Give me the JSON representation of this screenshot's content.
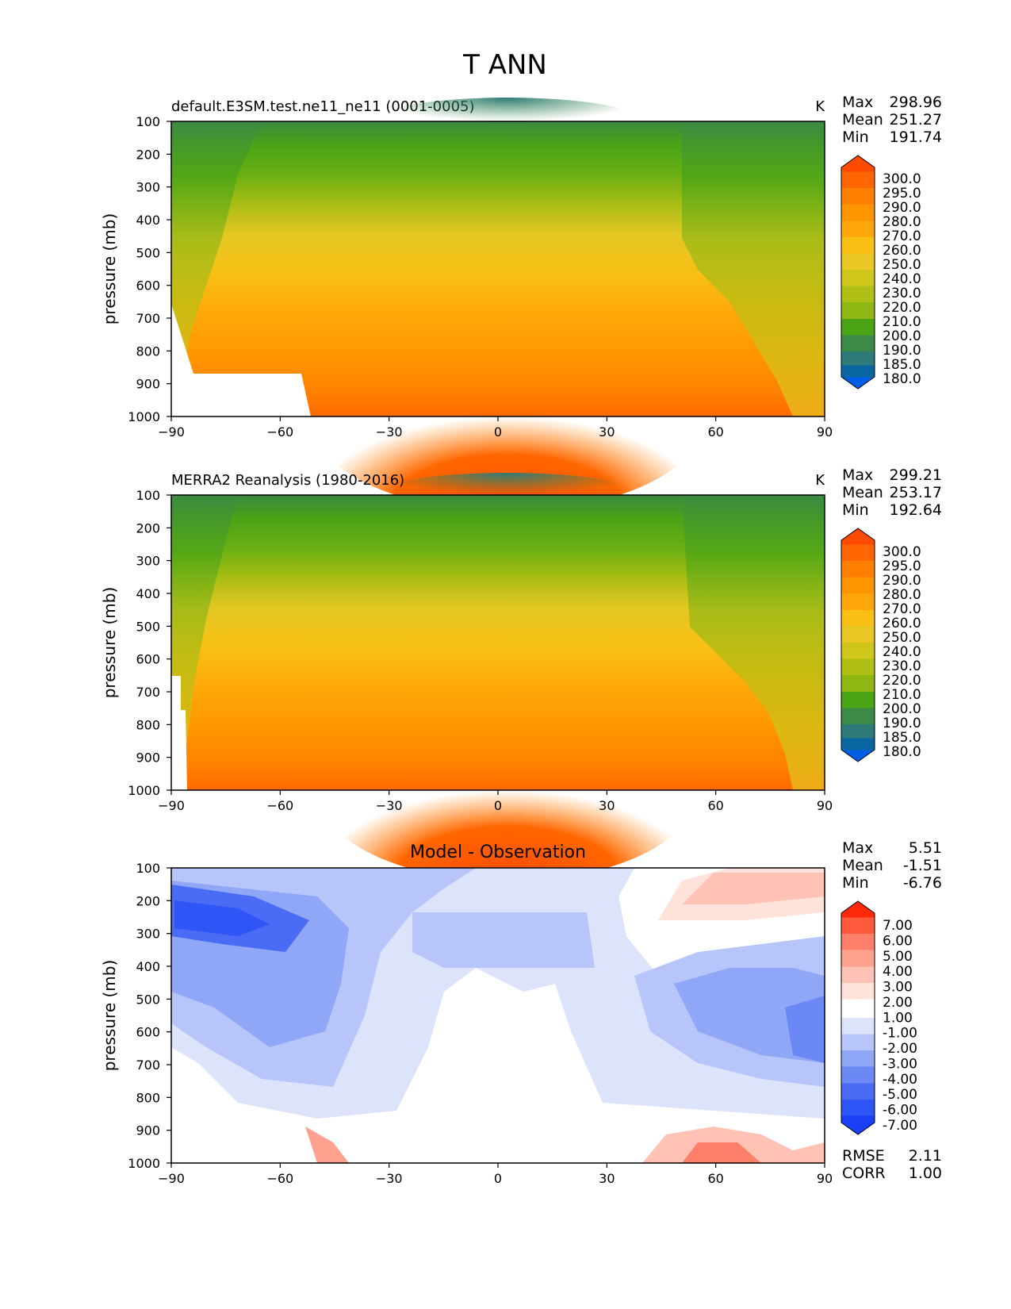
{
  "figure_title": "T ANN",
  "chart_data": [
    {
      "type": "heatmap",
      "title": "default.E3SM.test.ne11_ne11 (0001-0005)",
      "units": "K",
      "xlabel": "",
      "ylabel": "pressure (mb)",
      "xlim": [
        -90,
        90
      ],
      "ylim": [
        1000,
        100
      ],
      "xticks": [
        "−90",
        "−60",
        "−30",
        "0",
        "30",
        "60",
        "90"
      ],
      "yticks": [
        "100",
        "200",
        "300",
        "400",
        "500",
        "600",
        "700",
        "800",
        "900",
        "1000"
      ],
      "stats": [
        {
          "label": "Max",
          "value": "298.96"
        },
        {
          "label": "Mean",
          "value": "251.27"
        },
        {
          "label": "Min",
          "value": "191.74"
        }
      ],
      "colorbar": {
        "labels": [
          "300.0",
          "295.0",
          "290.0",
          "280.0",
          "270.0",
          "260.0",
          "250.0",
          "240.0",
          "230.0",
          "220.0",
          "210.0",
          "200.0",
          "190.0",
          "185.0",
          "180.0"
        ],
        "colors": [
          "#ff4a00",
          "#ff6600",
          "#ff8000",
          "#ff9500",
          "#ffa70a",
          "#f9bf14",
          "#e9c824",
          "#cfc61b",
          "#b0bf14",
          "#8fb714",
          "#6aaf14",
          "#4aa416",
          "#3b8a45",
          "#2d7a7a",
          "#0a66a0",
          "#005ee6"
        ]
      },
      "max_region": "surface, 0–30N",
      "min_region": "100 mb, equator"
    },
    {
      "type": "heatmap",
      "title": "MERRA2 Reanalysis (1980-2016)",
      "units": "K",
      "xlabel": "",
      "ylabel": "pressure (mb)",
      "xlim": [
        -90,
        90
      ],
      "ylim": [
        1000,
        100
      ],
      "xticks": [
        "−90",
        "−60",
        "−30",
        "0",
        "30",
        "60",
        "90"
      ],
      "yticks": [
        "100",
        "200",
        "300",
        "400",
        "500",
        "600",
        "700",
        "800",
        "900",
        "1000"
      ],
      "stats": [
        {
          "label": "Max",
          "value": "299.21"
        },
        {
          "label": "Mean",
          "value": "253.17"
        },
        {
          "label": "Min",
          "value": "192.64"
        }
      ],
      "colorbar": {
        "labels": [
          "300.0",
          "295.0",
          "290.0",
          "280.0",
          "270.0",
          "260.0",
          "250.0",
          "240.0",
          "230.0",
          "220.0",
          "210.0",
          "200.0",
          "190.0",
          "185.0",
          "180.0"
        ]
      }
    },
    {
      "type": "heatmap",
      "title": "Model - Observation",
      "units": "",
      "xlabel": "",
      "ylabel": "pressure (mb)",
      "xlim": [
        -90,
        90
      ],
      "ylim": [
        1000,
        100
      ],
      "xticks": [
        "−90",
        "−60",
        "−30",
        "0",
        "30",
        "60",
        "90"
      ],
      "yticks": [
        "100",
        "200",
        "300",
        "400",
        "500",
        "600",
        "700",
        "800",
        "900",
        "1000"
      ],
      "stats": [
        {
          "label": "Max",
          "value": "5.51"
        },
        {
          "label": "Mean",
          "value": "-1.51"
        },
        {
          "label": "Min",
          "value": "-6.76"
        }
      ],
      "bottom_stats": [
        {
          "label": "RMSE",
          "value": "2.11"
        },
        {
          "label": "CORR",
          "value": "1.00"
        }
      ],
      "colorbar": {
        "labels": [
          "7.00",
          "6.00",
          "5.00",
          "4.00",
          "3.00",
          "2.00",
          "1.00",
          "-1.00",
          "-2.00",
          "-3.00",
          "-4.00",
          "-5.00",
          "-6.00",
          "-7.00"
        ],
        "colors": [
          "#ff2a0a",
          "#ff5a3c",
          "#ff7f6a",
          "#ffa18f",
          "#ffc2b5",
          "#ffe2da",
          "#ffffff",
          "#dce3fb",
          "#b7c5fa",
          "#90a6f7",
          "#6b88f5",
          "#4a6cf4",
          "#2e55f5",
          "#1a40f7"
        ]
      }
    }
  ]
}
